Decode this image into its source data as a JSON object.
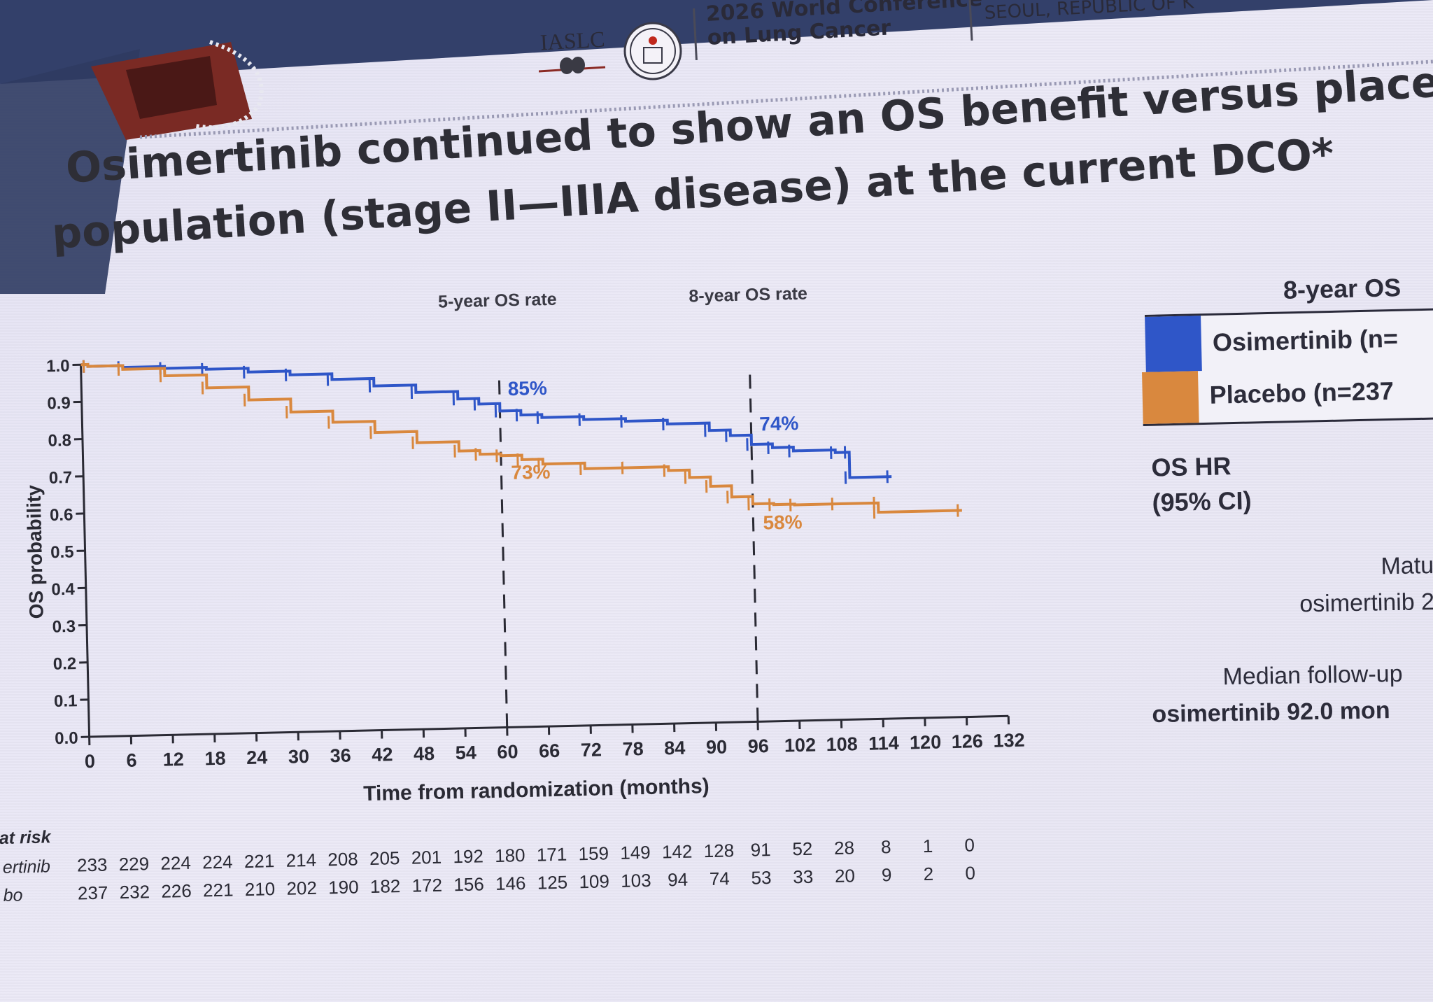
{
  "header": {
    "org": "IASLC",
    "conference_line1": "2026 World Conference",
    "conference_line2": "on Lung Cancer",
    "location": "SEOUL, REPUBLIC OF K"
  },
  "title": {
    "line1": "Osimertinib continued to show an OS benefit versus placebo",
    "line2": "population (stage II—IIIA disease) at the current DCO*"
  },
  "chart_data": {
    "type": "line",
    "subtype": "kaplan-meier",
    "xlabel": "Time from randomization (months)",
    "ylabel": "OS probability",
    "xlim": [
      0,
      132
    ],
    "ylim": [
      0,
      1.0
    ],
    "x_ticks": [
      0,
      6,
      12,
      18,
      24,
      30,
      36,
      42,
      48,
      54,
      60,
      66,
      72,
      78,
      84,
      90,
      96,
      102,
      108,
      114,
      120,
      126,
      132
    ],
    "y_ticks": [
      "0.0",
      "0.1",
      "0.2",
      "0.3",
      "0.4",
      "0.5",
      "0.6",
      "0.7",
      "0.8",
      "0.9",
      "1.0"
    ],
    "reference_lines": [
      {
        "x": 60,
        "label": "5-year OS rate"
      },
      {
        "x": 96,
        "label": "8-year OS rate"
      }
    ],
    "annotations": [
      {
        "series": "Osimertinib",
        "x": 60,
        "y": 0.85,
        "text": "85%"
      },
      {
        "series": "Placebo",
        "x": 60,
        "y": 0.73,
        "text": "73%"
      },
      {
        "series": "Osimertinib",
        "x": 96,
        "y": 0.74,
        "text": "74%"
      },
      {
        "series": "Placebo",
        "x": 96,
        "y": 0.58,
        "text": "58%"
      }
    ],
    "series": [
      {
        "color": "#2f56c8",
        "x": [
          0,
          1,
          6,
          12,
          18,
          24,
          30,
          36,
          42,
          48,
          54,
          57,
          60,
          63,
          66,
          72,
          78,
          84,
          90,
          93,
          96,
          99,
          102,
          108,
          110,
          110,
          116
        ],
        "y": [
          1.0,
          0.995,
          0.99,
          0.985,
          0.98,
          0.97,
          0.96,
          0.945,
          0.925,
          0.905,
          0.885,
          0.87,
          0.85,
          0.838,
          0.83,
          0.822,
          0.815,
          0.805,
          0.785,
          0.77,
          0.745,
          0.735,
          0.725,
          0.718,
          0.718,
          0.65,
          0.65
        ]
      },
      {
        "color": "#d9883e",
        "x": [
          0,
          1,
          6,
          12,
          18,
          24,
          30,
          36,
          42,
          48,
          54,
          57,
          60,
          63,
          66,
          72,
          78,
          84,
          87,
          90,
          93,
          96,
          99,
          102,
          108,
          114,
          114,
          126
        ],
        "y": [
          1.0,
          0.995,
          0.985,
          0.965,
          0.93,
          0.895,
          0.86,
          0.83,
          0.8,
          0.77,
          0.745,
          0.735,
          0.73,
          0.718,
          0.705,
          0.69,
          0.69,
          0.68,
          0.66,
          0.635,
          0.605,
          0.585,
          0.582,
          0.58,
          0.58,
          0.58,
          0.555,
          0.555
        ]
      }
    ],
    "at_risk": {
      "title": "at risk",
      "times": [
        0,
        6,
        12,
        18,
        24,
        30,
        36,
        42,
        48,
        54,
        60,
        66,
        72,
        78,
        84,
        90,
        96,
        102,
        108,
        114,
        120,
        126
      ],
      "rows": [
        {
          "label": "ertinib",
          "values": [
            233,
            229,
            224,
            224,
            221,
            214,
            208,
            205,
            201,
            192,
            180,
            171,
            159,
            149,
            142,
            128,
            91,
            52,
            28,
            8,
            1,
            0
          ]
        },
        {
          "label": "bo",
          "values": [
            237,
            232,
            226,
            221,
            210,
            202,
            190,
            182,
            172,
            156,
            146,
            125,
            109,
            103,
            94,
            74,
            53,
            33,
            20,
            9,
            2,
            0
          ]
        }
      ]
    }
  },
  "side": {
    "legend_header": "8-year OS",
    "legend_osimertinib": "Osimertinib (n=",
    "legend_placebo": "Placebo (n=237",
    "os_hr_line1": "OS HR",
    "os_hr_line2": "(95% CI)",
    "maturity_line1": "Matu",
    "maturity_line2": "osimertinib 2",
    "followup_line1": "Median follow-up",
    "followup_line2": "osimertinib 92.0 mon"
  }
}
